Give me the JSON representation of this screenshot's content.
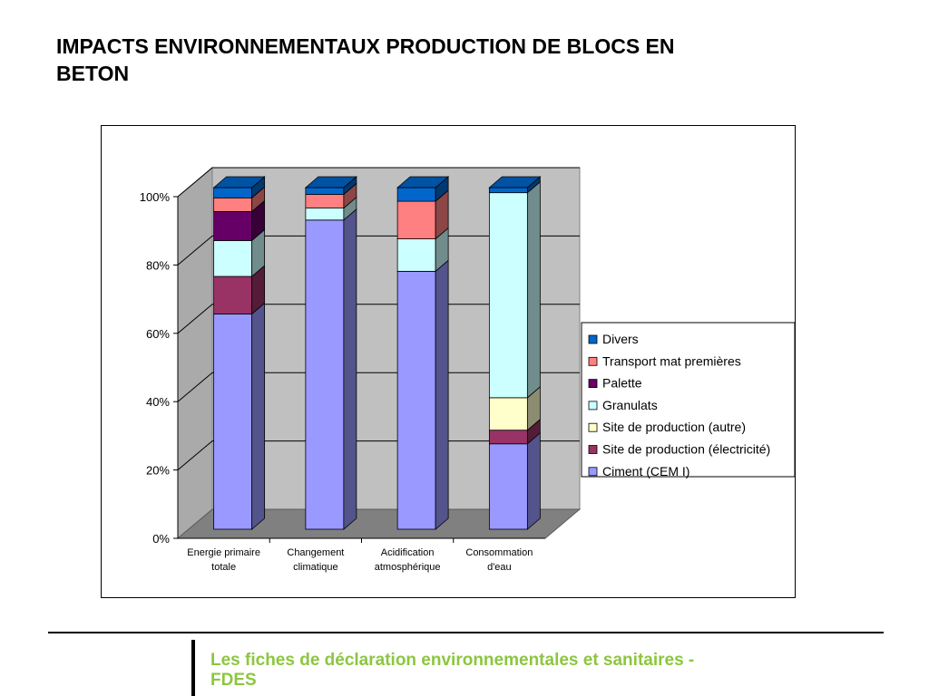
{
  "slide": {
    "title": "IMPACTS ENVIRONNEMENTAUX PRODUCTION DE BLOCS EN BETON",
    "footer": "Les fiches de déclaration environnementales et sanitaires - FDES"
  },
  "colors": {
    "footer_text": "#8cc63f",
    "wall": "#c0c0c0",
    "floor": "#808080"
  },
  "chart_data": {
    "type": "bar",
    "stacked": true,
    "percent": true,
    "three_d": true,
    "title": "",
    "xlabel": "",
    "ylabel": "",
    "ylim": [
      0,
      100
    ],
    "y_ticks": [
      "0%",
      "20%",
      "40%",
      "60%",
      "80%",
      "100%"
    ],
    "grid": true,
    "legend_position": "right",
    "categories": [
      "Energie primaire totale",
      "Changement climatique",
      "Acidification atmosphérique",
      "Consommation d'eau"
    ],
    "series": [
      {
        "name": "Ciment (CEM I)",
        "color": "#9999ff",
        "values": [
          63,
          90.5,
          75.5,
          25
        ]
      },
      {
        "name": "Site de production (électricité)",
        "color": "#993366",
        "values": [
          11,
          0,
          0,
          4
        ]
      },
      {
        "name": "Site de production (autre)",
        "color": "#ffffcc",
        "values": [
          0,
          0,
          0,
          9.5
        ]
      },
      {
        "name": "Granulats",
        "color": "#ccffff",
        "values": [
          10.5,
          3.5,
          9.5,
          60
        ]
      },
      {
        "name": "Palette",
        "color": "#660066",
        "values": [
          8.5,
          0,
          0,
          0
        ]
      },
      {
        "name": "Transport mat premières",
        "color": "#ff8080",
        "values": [
          4,
          4,
          11,
          0
        ]
      },
      {
        "name": "Divers",
        "color": "#0066cc",
        "values": [
          3,
          2,
          4,
          1.5
        ]
      }
    ]
  }
}
